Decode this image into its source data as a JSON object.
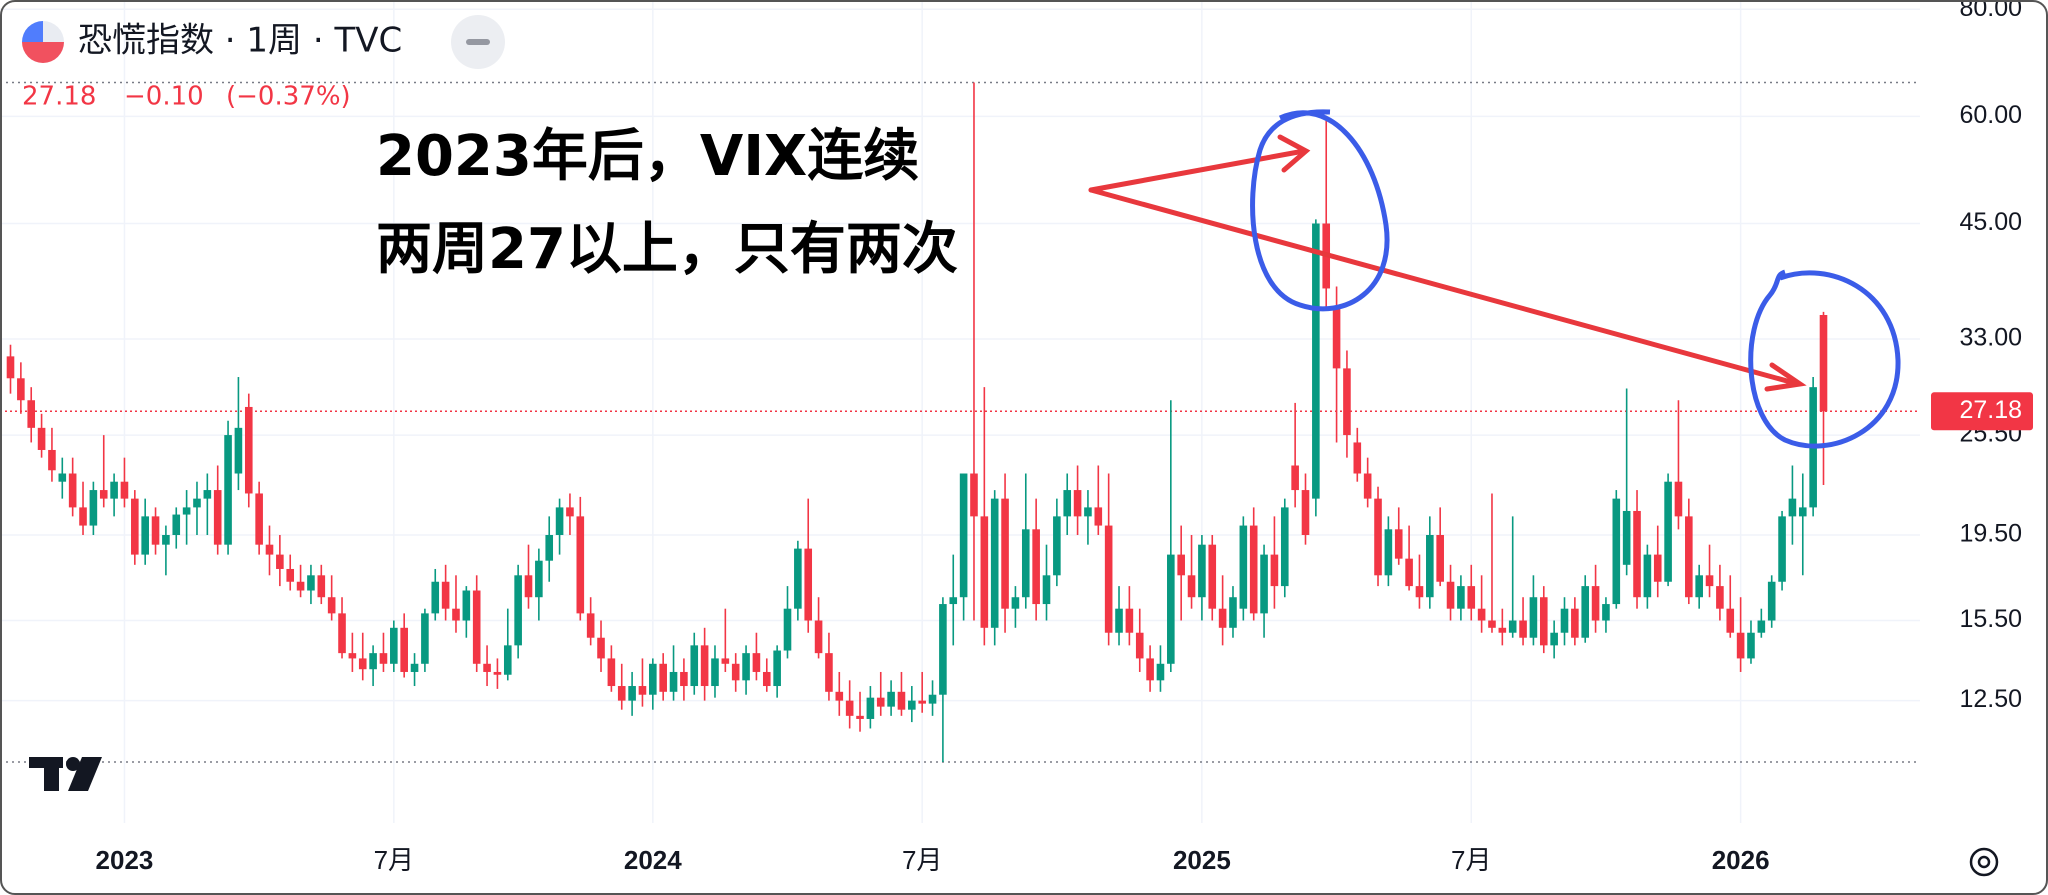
{
  "chart_data": {
    "type": "candlestick",
    "title": "恐慌指数 · 1周 · TVC",
    "last_price": 27.18,
    "change": "−0.10",
    "change_percent": "(−0.37%)",
    "annotations": [
      "2023年后，VIX连续",
      "两周27以上，只有两次"
    ],
    "log_scale": true,
    "grid": true,
    "up_color": "#089981",
    "down_color": "#f23645",
    "ylim": [
      9,
      82
    ],
    "yticks": [
      {
        "value": 12.5,
        "label": "12.50"
      },
      {
        "value": 15.5,
        "label": "15.50"
      },
      {
        "value": 19.5,
        "label": "19.50"
      },
      {
        "value": 25.5,
        "label": "25.50"
      },
      {
        "value": 33,
        "label": "33.00"
      },
      {
        "value": 45,
        "label": "45.00"
      },
      {
        "value": 60,
        "label": "60.00"
      },
      {
        "value": 80,
        "label": "80.00"
      }
    ],
    "categories": [
      null,
      null,
      null,
      null,
      null,
      null,
      null,
      null,
      null,
      null,
      null,
      "2023",
      null,
      null,
      null,
      null,
      null,
      null,
      null,
      null,
      null,
      null,
      null,
      null,
      null,
      null,
      null,
      null,
      null,
      null,
      null,
      null,
      null,
      null,
      null,
      null,
      null,
      "7月",
      null,
      null,
      null,
      null,
      null,
      null,
      null,
      null,
      null,
      null,
      null,
      null,
      null,
      null,
      null,
      null,
      null,
      null,
      null,
      null,
      null,
      null,
      null,
      null,
      "2024",
      null,
      null,
      null,
      null,
      null,
      null,
      null,
      null,
      null,
      null,
      null,
      null,
      null,
      null,
      null,
      null,
      null,
      null,
      null,
      null,
      null,
      null,
      null,
      null,
      null,
      "7月",
      null,
      null,
      null,
      null,
      null,
      null,
      null,
      null,
      null,
      null,
      null,
      null,
      null,
      null,
      null,
      null,
      null,
      null,
      null,
      null,
      null,
      null,
      null,
      null,
      null,
      null,
      "2025",
      null,
      null,
      null,
      null,
      null,
      null,
      null,
      null,
      null,
      null,
      null,
      null,
      null,
      null,
      null,
      null,
      null,
      null,
      null,
      null,
      null,
      null,
      null,
      null,
      null,
      "7月",
      null,
      null,
      null,
      null,
      null,
      null,
      null,
      null,
      null,
      null,
      null,
      null,
      null,
      null,
      null,
      null,
      null,
      null,
      null,
      null,
      null,
      null,
      null,
      null,
      null,
      "2026",
      null,
      null,
      null,
      null,
      null,
      null,
      null,
      null
    ],
    "candles": [
      [
        31.5,
        32.5,
        28.5,
        29.7
      ],
      [
        29.7,
        31,
        27,
        28
      ],
      [
        28,
        29,
        25,
        26
      ],
      [
        26,
        27,
        24,
        24.5
      ],
      [
        24.5,
        26,
        22.5,
        23.2
      ],
      [
        22.5,
        24,
        21.5,
        23
      ],
      [
        23,
        24,
        20.5,
        21
      ],
      [
        21,
        22.5,
        19.5,
        20
      ],
      [
        20,
        22.5,
        19.5,
        22
      ],
      [
        22,
        25.5,
        21,
        21.5
      ],
      [
        21.5,
        23,
        20.5,
        22.5
      ],
      [
        22.5,
        24,
        21,
        21.5
      ],
      [
        21.5,
        22,
        18,
        18.5
      ],
      [
        18.5,
        21.5,
        18,
        20.5
      ],
      [
        20.5,
        21,
        18.5,
        19
      ],
      [
        19,
        20,
        17.5,
        19.5
      ],
      [
        19.5,
        21,
        18.8,
        20.6
      ],
      [
        20.6,
        22,
        19,
        21
      ],
      [
        21,
        22.5,
        19.5,
        21.5
      ],
      [
        21.5,
        23,
        19.5,
        22
      ],
      [
        22,
        23.5,
        18.5,
        19
      ],
      [
        19,
        26.5,
        18.5,
        25.5
      ],
      [
        23,
        29.8,
        22,
        26
      ],
      [
        27.5,
        28.5,
        21,
        21.8
      ],
      [
        21.8,
        22.5,
        18.5,
        19
      ],
      [
        19,
        20,
        17.5,
        18.5
      ],
      [
        18.5,
        19.5,
        17,
        17.8
      ],
      [
        17.8,
        18.5,
        16.8,
        17.2
      ],
      [
        17.2,
        18,
        16.5,
        16.8
      ],
      [
        16.8,
        18,
        16.2,
        17.5
      ],
      [
        17.5,
        18,
        16.2,
        16.5
      ],
      [
        16.5,
        17.5,
        15.5,
        15.8
      ],
      [
        15.8,
        16.5,
        14,
        14.2
      ],
      [
        14.2,
        15,
        13.5,
        14
      ],
      [
        14,
        15,
        13.2,
        13.6
      ],
      [
        13.6,
        14.5,
        13,
        14.2
      ],
      [
        14.2,
        15,
        13.5,
        13.8
      ],
      [
        13.8,
        15.5,
        13.5,
        15.2
      ],
      [
        15.2,
        15.8,
        13.3,
        13.5
      ],
      [
        13.5,
        14.2,
        13,
        13.8
      ],
      [
        13.8,
        16,
        13.5,
        15.8
      ],
      [
        15.8,
        17.8,
        15.5,
        17.2
      ],
      [
        17.2,
        18,
        15.5,
        16
      ],
      [
        16,
        17.5,
        15,
        15.5
      ],
      [
        15.5,
        17,
        14.8,
        16.8
      ],
      [
        16.8,
        17.5,
        13.5,
        13.8
      ],
      [
        13.8,
        14.5,
        13,
        13.5
      ],
      [
        13.5,
        14,
        12.9,
        13.4
      ],
      [
        13.4,
        16,
        13.2,
        14.5
      ],
      [
        14.5,
        18,
        14,
        17.5
      ],
      [
        17.5,
        19,
        16,
        16.5
      ],
      [
        16.5,
        18.8,
        15.5,
        18.2
      ],
      [
        18.2,
        20.5,
        17.2,
        19.5
      ],
      [
        19.5,
        21.5,
        18.5,
        21
      ],
      [
        21,
        21.8,
        19.5,
        20.5
      ],
      [
        20.5,
        21.6,
        15.5,
        15.8
      ],
      [
        15.8,
        16.5,
        14.5,
        14.8
      ],
      [
        14.8,
        15.5,
        13.5,
        14
      ],
      [
        14,
        14.5,
        12.8,
        13
      ],
      [
        13,
        13.8,
        12.2,
        12.5
      ],
      [
        12.5,
        13.5,
        12,
        13
      ],
      [
        13,
        14,
        12.3,
        12.7
      ],
      [
        12.7,
        14,
        12.2,
        13.8
      ],
      [
        13.8,
        14.2,
        12.5,
        12.8
      ],
      [
        12.8,
        14.5,
        12.5,
        13.5
      ],
      [
        13.5,
        14,
        12.5,
        13
      ],
      [
        13,
        15,
        12.7,
        14.5
      ],
      [
        14.5,
        15.2,
        12.5,
        13
      ],
      [
        13,
        14.5,
        12.6,
        14
      ],
      [
        14,
        16,
        13.5,
        13.8
      ],
      [
        13.8,
        14.2,
        12.8,
        13.2
      ],
      [
        13.2,
        14.5,
        12.7,
        14.2
      ],
      [
        14.2,
        15,
        13.2,
        13.5
      ],
      [
        13.5,
        14,
        12.8,
        13
      ],
      [
        13,
        14.5,
        12.6,
        14.3
      ],
      [
        14.3,
        17,
        14,
        16
      ],
      [
        16,
        19.2,
        15.5,
        18.8
      ],
      [
        18.8,
        21.5,
        15,
        15.5
      ],
      [
        15.5,
        16.5,
        14,
        14.2
      ],
      [
        14.2,
        15,
        12.5,
        12.8
      ],
      [
        12.8,
        13.5,
        12,
        12.5
      ],
      [
        12.5,
        13.2,
        11.6,
        12
      ],
      [
        12,
        12.8,
        11.5,
        11.9
      ],
      [
        11.9,
        13,
        11.6,
        12.6
      ],
      [
        12.6,
        13.5,
        12,
        12.3
      ],
      [
        12.3,
        13.2,
        12,
        12.8
      ],
      [
        12.8,
        13.5,
        12,
        12.2
      ],
      [
        12.2,
        13,
        11.8,
        12.5
      ],
      [
        12.5,
        13.5,
        12.1,
        12.4
      ],
      [
        12.4,
        13.2,
        12,
        12.7
      ],
      [
        12.7,
        16.5,
        10.6,
        16.2
      ],
      [
        16.2,
        18.5,
        14.5,
        16.5
      ],
      [
        16.5,
        23,
        15.5,
        23
      ],
      [
        23,
        65.7,
        15.5,
        20.5
      ],
      [
        20.5,
        29,
        14.5,
        15.2
      ],
      [
        15.2,
        22,
        14.5,
        21.5
      ],
      [
        21.5,
        23,
        15,
        16
      ],
      [
        16,
        17,
        15.2,
        16.5
      ],
      [
        16.5,
        23,
        16,
        19.8
      ],
      [
        19.8,
        21.5,
        15.5,
        16.2
      ],
      [
        16.2,
        19,
        15.5,
        17.5
      ],
      [
        17.5,
        21.5,
        17,
        20.5
      ],
      [
        20.5,
        23,
        19.5,
        22
      ],
      [
        22,
        23.5,
        19.5,
        20.5
      ],
      [
        20.5,
        22,
        19,
        21
      ],
      [
        21,
        23.5,
        19.5,
        20
      ],
      [
        20,
        23,
        14.5,
        15
      ],
      [
        15,
        17,
        14.5,
        16
      ],
      [
        16,
        17,
        14.5,
        15
      ],
      [
        15,
        16,
        13.5,
        14
      ],
      [
        14,
        14.5,
        12.8,
        13.2
      ],
      [
        13.2,
        14.5,
        12.8,
        13.8
      ],
      [
        13.8,
        28,
        13.5,
        18.5
      ],
      [
        18.5,
        20,
        15.5,
        17.5
      ],
      [
        17.5,
        19.5,
        16,
        16.5
      ],
      [
        16.5,
        19.5,
        15.5,
        19
      ],
      [
        19,
        19.5,
        15.5,
        16
      ],
      [
        16,
        17.5,
        14.5,
        15.2
      ],
      [
        15.2,
        17,
        14.8,
        16.5
      ],
      [
        16,
        20.5,
        15.5,
        20
      ],
      [
        20,
        21,
        15.5,
        15.8
      ],
      [
        15.8,
        19,
        14.8,
        18.5
      ],
      [
        18.5,
        20.5,
        16,
        17
      ],
      [
        17,
        21.5,
        16.5,
        21
      ],
      [
        23.5,
        27.8,
        21,
        22
      ],
      [
        22,
        23,
        19,
        19.5
      ],
      [
        21.5,
        45.5,
        20.5,
        45
      ],
      [
        45,
        60.1,
        36,
        37.8
      ],
      [
        36,
        38,
        25,
        30.5
      ],
      [
        30.5,
        32,
        24,
        25.5
      ],
      [
        25,
        26,
        22.5,
        23
      ],
      [
        23,
        24,
        21,
        21.5
      ],
      [
        21.5,
        22.2,
        17,
        17.5
      ],
      [
        17.5,
        20.5,
        17,
        19.8
      ],
      [
        19.8,
        21,
        18,
        18.3
      ],
      [
        18.3,
        20,
        16.8,
        17
      ],
      [
        17,
        18.5,
        16,
        16.5
      ],
      [
        16.5,
        20.5,
        16,
        19.5
      ],
      [
        19.5,
        21,
        17,
        17.2
      ],
      [
        17.2,
        18,
        15.5,
        16
      ],
      [
        16,
        17.5,
        15.5,
        17
      ],
      [
        17,
        18,
        15.5,
        16
      ],
      [
        16,
        17.5,
        15,
        15.5
      ],
      [
        15.5,
        21.8,
        15,
        15.2
      ],
      [
        15.2,
        16,
        14.5,
        15
      ],
      [
        15,
        20.5,
        14.8,
        15.5
      ],
      [
        15.5,
        16.5,
        14.5,
        14.8
      ],
      [
        14.8,
        17.5,
        14.5,
        16.5
      ],
      [
        16.5,
        17,
        14.2,
        14.5
      ],
      [
        14.5,
        15.5,
        14,
        15
      ],
      [
        15,
        16.5,
        14.5,
        16
      ],
      [
        16,
        16.5,
        14.5,
        14.8
      ],
      [
        14.8,
        17.5,
        14.6,
        17
      ],
      [
        17,
        18,
        15,
        15.5
      ],
      [
        15.5,
        16.5,
        15,
        16.2
      ],
      [
        16.2,
        22,
        16,
        21.5
      ],
      [
        18,
        28.9,
        17.5,
        20.8
      ],
      [
        20.8,
        22,
        16,
        16.5
      ],
      [
        16.5,
        19,
        16,
        18.5
      ],
      [
        18.5,
        20,
        16.5,
        17.2
      ],
      [
        17.2,
        23,
        17,
        22.5
      ],
      [
        22.5,
        28,
        19.8,
        20.5
      ],
      [
        20.5,
        21.5,
        16.2,
        16.5
      ],
      [
        16.5,
        18,
        16,
        17.5
      ],
      [
        17.5,
        19,
        16.5,
        17
      ],
      [
        17,
        18,
        15.5,
        16
      ],
      [
        16,
        17.5,
        14.8,
        15
      ],
      [
        15,
        16.5,
        13.5,
        14
      ],
      [
        14,
        15.5,
        13.8,
        15
      ],
      [
        15,
        16,
        14.8,
        15.5
      ],
      [
        15.5,
        17.5,
        15.2,
        17.2
      ],
      [
        17.2,
        20.8,
        16.8,
        20.5
      ],
      [
        20.5,
        23.5,
        19,
        21.5
      ],
      [
        20.5,
        23,
        17.5,
        21
      ],
      [
        21,
        29.8,
        20.5,
        29
      ],
      [
        35.2,
        35.5,
        22.3,
        27.18
      ]
    ]
  }
}
